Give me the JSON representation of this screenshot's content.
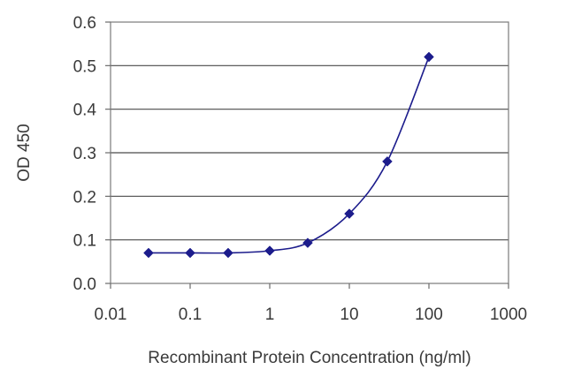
{
  "chart_data": {
    "type": "line",
    "xscale": "log",
    "x": [
      0.03,
      0.1,
      0.3,
      1,
      3,
      10,
      30,
      100
    ],
    "series": [
      {
        "values": [
          0.07,
          0.07,
          0.07,
          0.075,
          0.093,
          0.16,
          0.28,
          0.52
        ],
        "color": "#1c1c8c",
        "marker": "diamond"
      }
    ],
    "xlabel": "Recombinant Protein Concentration (ng/ml)",
    "ylabel": "OD 450",
    "xlim": [
      0.01,
      1000
    ],
    "ylim": [
      0,
      0.6
    ],
    "xticks": [
      "0.01",
      "0.1",
      "1",
      "10",
      "100",
      "1000"
    ],
    "yticks": [
      "0.0",
      "0.1",
      "0.2",
      "0.3",
      "0.4",
      "0.5",
      "0.6"
    ],
    "grid": "horizontal",
    "legend": "none"
  }
}
